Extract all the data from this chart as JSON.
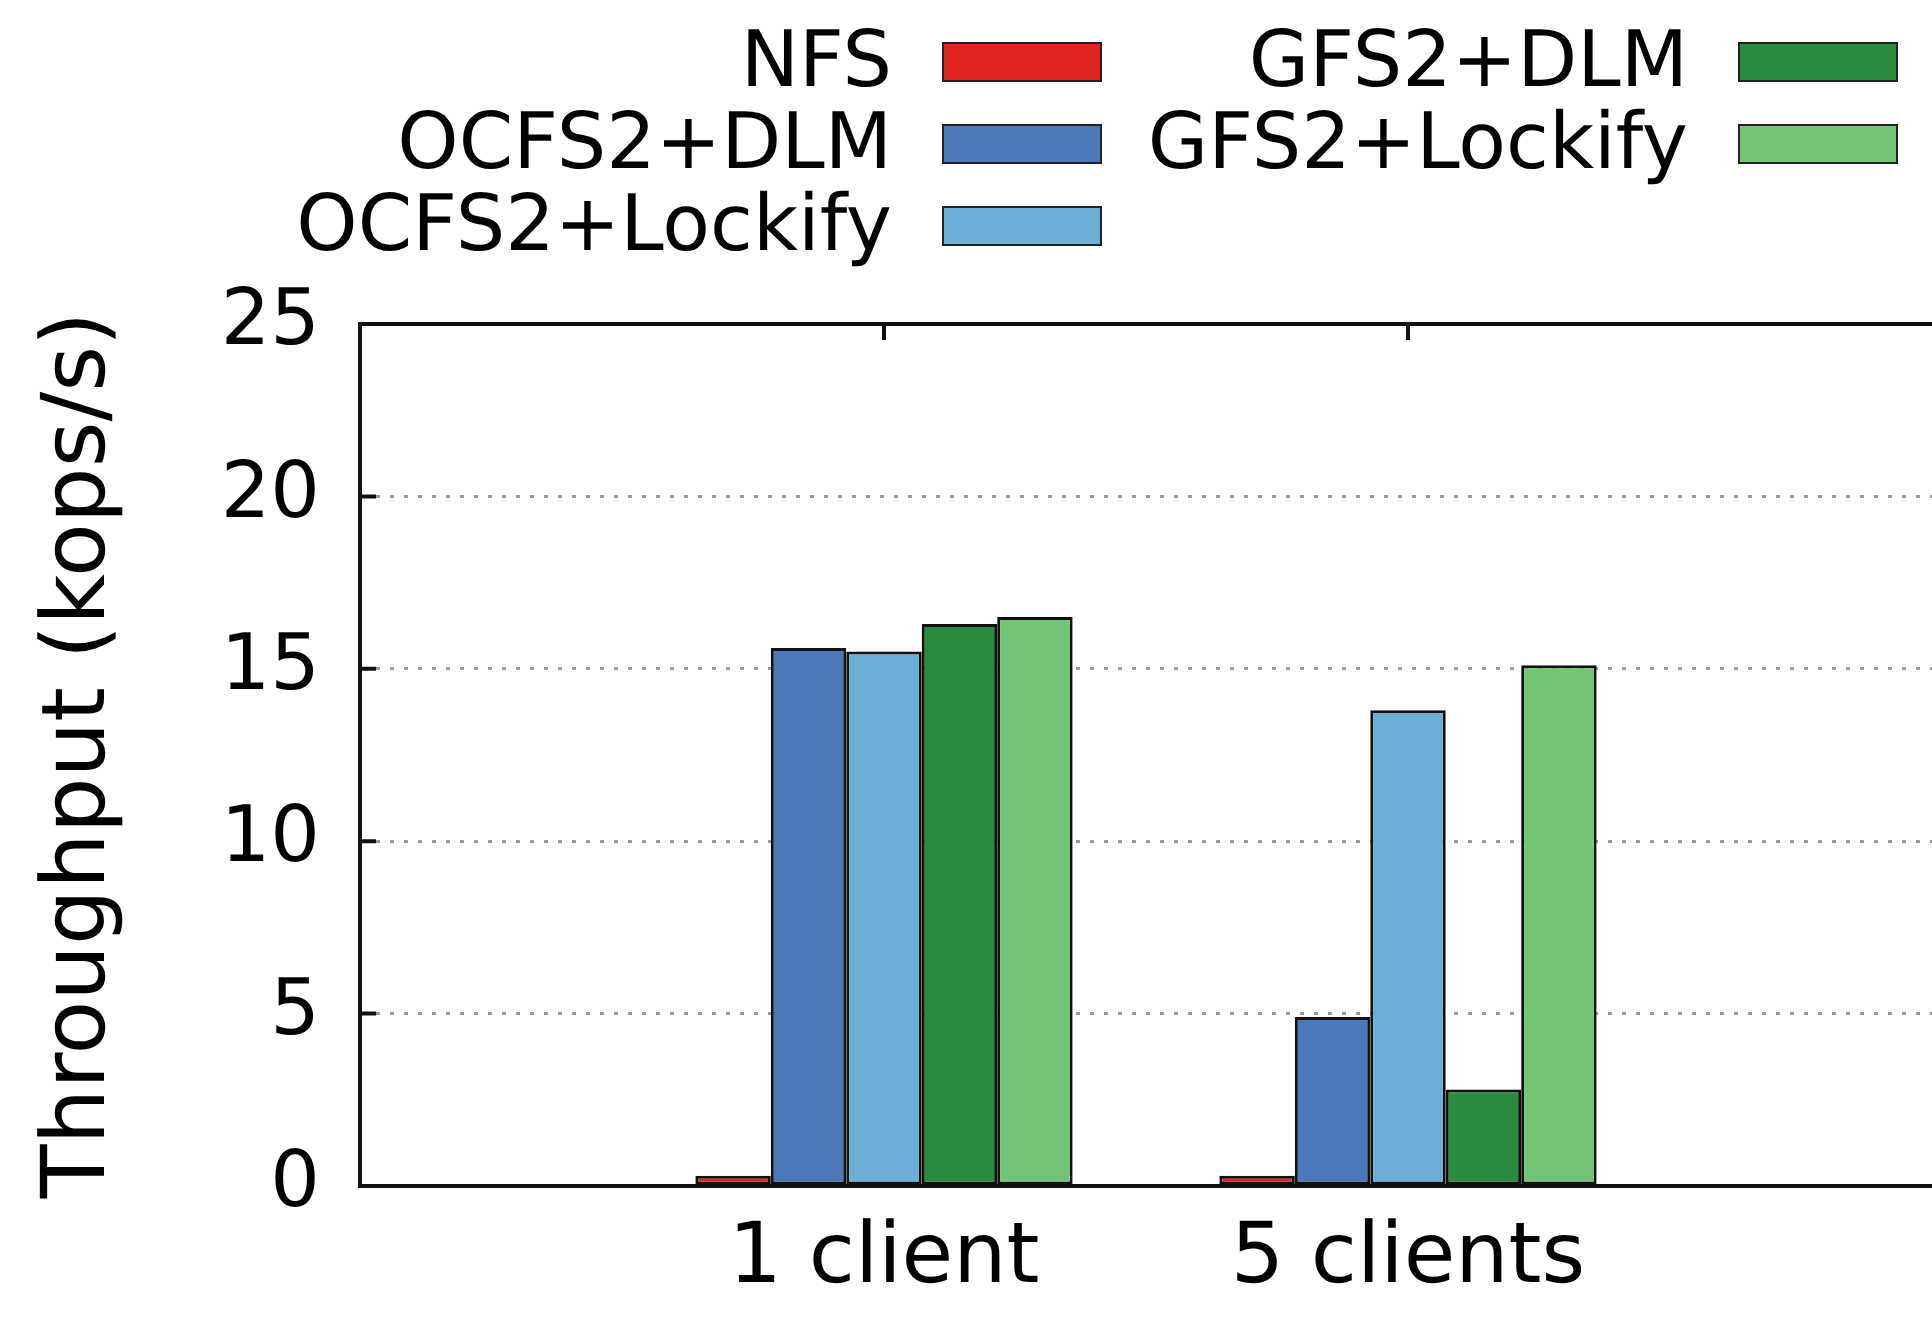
{
  "chart_data": {
    "type": "bar",
    "ylabel": "Throughput (kops/s)",
    "categories": [
      "1 client",
      "5 clients"
    ],
    "series": [
      {
        "name": "NFS",
        "color": "#e0271f",
        "values": [
          0.3,
          0.3
        ]
      },
      {
        "name": "OCFS2+DLM",
        "color": "#4a78b8",
        "values": [
          15.6,
          4.9
        ]
      },
      {
        "name": "OCFS2+Lockify",
        "color": "#6baed6",
        "values": [
          15.5,
          13.8
        ]
      },
      {
        "name": "GFS2+DLM",
        "color": "#2a8a3e",
        "values": [
          16.3,
          2.8
        ]
      },
      {
        "name": "GFS2+Lockify",
        "color": "#74c476",
        "values": [
          16.5,
          15.1
        ]
      }
    ],
    "ylim": [
      0,
      25
    ],
    "yticks": [
      0,
      5,
      10,
      15,
      20,
      25
    ],
    "grid": "y",
    "legend": "top"
  }
}
